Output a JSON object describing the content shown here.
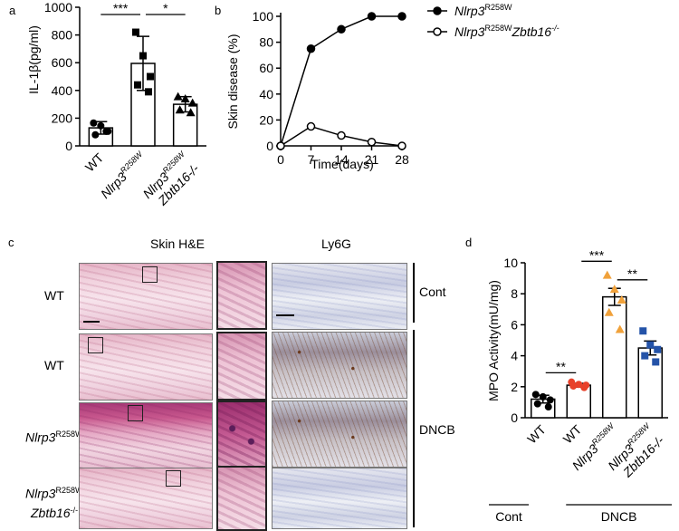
{
  "panels": {
    "a": "a",
    "b": "b",
    "c": "c",
    "d": "d"
  },
  "chart_data": [
    {
      "id": "a",
      "type": "bar",
      "ylabel": "IL-1β(pg/ml)",
      "ylim": [
        0,
        1000
      ],
      "yticks": [
        0,
        200,
        400,
        600,
        800,
        1000
      ],
      "categories": [
        {
          "label": "WT",
          "gene": "",
          "sup": "",
          "sub": ""
        },
        {
          "label": "",
          "gene": "Nlrp3",
          "sup": "R258W",
          "sub": ""
        },
        {
          "label": "",
          "gene": "Nlrp3",
          "sup": "R258W",
          "sub": "Zbtb16-/-"
        }
      ],
      "values": [
        130,
        595,
        300
      ],
      "errors": [
        45,
        195,
        55
      ],
      "points": [
        [
          165,
          145,
          105,
          80,
          105
        ],
        [
          820,
          650,
          500,
          440,
          390
        ],
        [
          355,
          340,
          310,
          260,
          240
        ]
      ],
      "markers": [
        "circle",
        "square",
        "triangle"
      ],
      "significance": [
        {
          "from": 0,
          "to": 1,
          "label": "***"
        },
        {
          "from": 1,
          "to": 2,
          "label": "*"
        }
      ]
    },
    {
      "id": "b",
      "type": "line",
      "xlabel": "Time(days)",
      "ylabel": "Skin disease (%)",
      "x": [
        0,
        7,
        14,
        21,
        28
      ],
      "xlim": [
        0,
        28
      ],
      "ylim": [
        0,
        100
      ],
      "yticks": [
        0,
        20,
        40,
        60,
        80,
        100
      ],
      "series": [
        {
          "name": "Nlrp3R258W",
          "gene": "Nlrp3",
          "sup": "R258W",
          "suffix": "",
          "suffix_sup": "",
          "values": [
            0,
            75,
            90,
            100,
            100
          ],
          "marker": "filled"
        },
        {
          "name": "Nlrp3R258WZbtb16-/-",
          "gene": "Nlrp3",
          "sup": "R258W",
          "suffix": "Zbtb16",
          "suffix_sup": "-/-",
          "values": [
            0,
            15,
            8,
            3,
            0
          ],
          "marker": "open"
        }
      ]
    },
    {
      "id": "d",
      "type": "bar",
      "ylabel": "MPO Activity(mU/mg)",
      "ylim": [
        0,
        10
      ],
      "yticks": [
        0,
        2,
        4,
        6,
        8,
        10
      ],
      "categories": [
        {
          "label": "WT",
          "gene": "",
          "sup": "",
          "sub": ""
        },
        {
          "label": "WT",
          "gene": "",
          "sup": "",
          "sub": ""
        },
        {
          "label": "",
          "gene": "Nlrp3",
          "sup": "R258W",
          "sub": ""
        },
        {
          "label": "",
          "gene": "Nlrp3",
          "sup": "R258W",
          "sub": "Zbtb16-/-"
        }
      ],
      "values": [
        1.2,
        2.1,
        7.8,
        4.5
      ],
      "errors": [
        0.25,
        0.12,
        0.55,
        0.45
      ],
      "points": [
        [
          1.5,
          1.35,
          1.15,
          0.9,
          0.7
        ],
        [
          2.3,
          2.15,
          2.1,
          2.05,
          1.95
        ],
        [
          9.2,
          8.3,
          7.6,
          6.8,
          5.7
        ],
        [
          5.6,
          4.7,
          4.4,
          4.0,
          3.6
        ]
      ],
      "point_colors": [
        "#000000",
        "#e8412a",
        "#f0a13a",
        "#2453a8"
      ],
      "markers": [
        "circle",
        "circle",
        "triangle",
        "square"
      ],
      "significance": [
        {
          "from": 0,
          "to": 1,
          "label": "**"
        },
        {
          "from": 1,
          "to": 2,
          "label": "***"
        },
        {
          "from": 2,
          "to": 3,
          "label": "**"
        }
      ],
      "groups": [
        "Cont",
        "DNCB"
      ]
    }
  ],
  "histology": {
    "headers": [
      "Skin H&E",
      "Ly6G"
    ],
    "rows": [
      {
        "label": "WT",
        "gene": "",
        "sup": "",
        "line2": ""
      },
      {
        "label": "WT",
        "gene": "",
        "sup": "",
        "line2": ""
      },
      {
        "label": "",
        "gene": "Nlrp3",
        "sup": "R258W",
        "line2": ""
      },
      {
        "label": "",
        "gene": "Nlrp3",
        "sup": "R258W",
        "line2": "Zbtb16",
        "line2_sup": "-/-"
      }
    ],
    "groups": [
      "Cont",
      "DNCB"
    ]
  }
}
